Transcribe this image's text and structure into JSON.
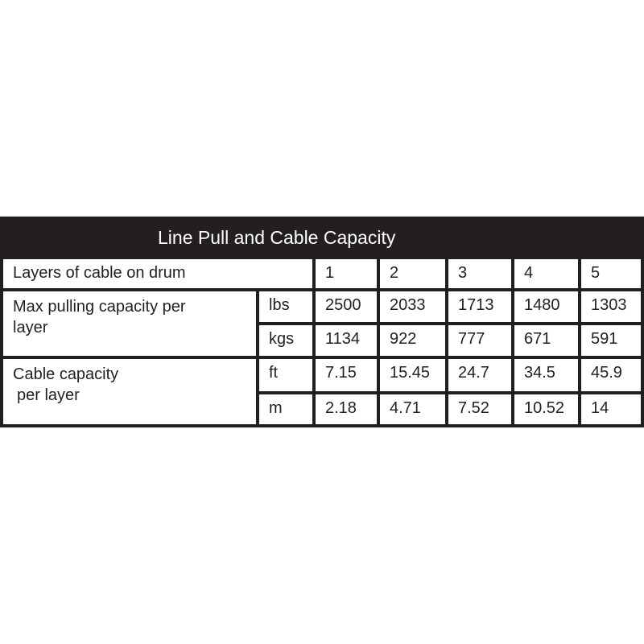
{
  "title": "Line Pull and Cable Capacity",
  "header_row": {
    "label": "Layers of cable on drum",
    "layers": [
      "1",
      "2",
      "3",
      "4",
      "5"
    ]
  },
  "groups": [
    {
      "label_line1": "Max pulling capacity per",
      "label_line2": "layer",
      "rows": [
        {
          "unit": "lbs",
          "values": [
            "2500",
            "2033",
            "1713",
            "1480",
            "1303"
          ]
        },
        {
          "unit": "kgs",
          "values": [
            "1134",
            "922",
            "777",
            "671",
            "591"
          ]
        }
      ]
    },
    {
      "label_line1": "Cable capacity",
      "label_line2": "per layer",
      "rows": [
        {
          "unit": "ft",
          "values": [
            "7.15",
            "15.45",
            "24.7",
            "34.5",
            "45.9"
          ]
        },
        {
          "unit": "m",
          "values": [
            "2.18",
            "4.71",
            "7.52",
            "10.52",
            "14"
          ]
        }
      ]
    }
  ]
}
